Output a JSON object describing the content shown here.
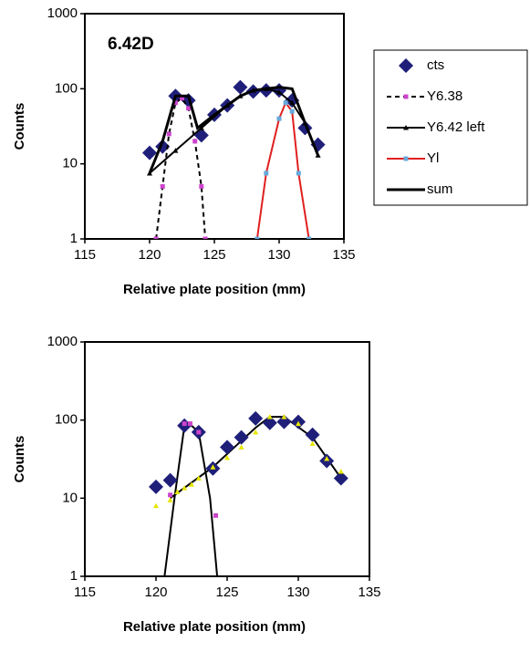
{
  "chart_data": [
    {
      "type": "line",
      "log_y": true,
      "annotation": "6.42D",
      "xlabel": "Relative plate position (mm)",
      "ylabel": "Counts",
      "xlim": [
        115,
        135
      ],
      "xticks": [
        115,
        120,
        125,
        130,
        135
      ],
      "ylim": [
        1,
        1000
      ],
      "yticks": [
        1,
        10,
        100,
        1000
      ],
      "legend": "right",
      "series": [
        {
          "name": "cts",
          "color": "#1f1f7a",
          "marker": "diamond",
          "line": "none",
          "x": [
            120,
            121,
            122,
            123,
            124,
            125,
            126,
            127,
            128,
            129,
            130,
            131,
            132,
            133
          ],
          "values": [
            14,
            17,
            80,
            70,
            24,
            45,
            60,
            105,
            92,
            95,
            95,
            70,
            30,
            18
          ]
        },
        {
          "name": "Y6.38",
          "color": "#000000",
          "marker_color": "#cc44cc",
          "marker": "square",
          "line": "dashed",
          "x": [
            120.5,
            121,
            121.5,
            122,
            122.5,
            123,
            123.5,
            124,
            124.3
          ],
          "values": [
            1,
            5,
            25,
            65,
            75,
            55,
            20,
            5,
            1
          ]
        },
        {
          "name": "Y6.42 left",
          "color": "#000000",
          "marker": "triangle",
          "line": "solid",
          "x": [
            120,
            122,
            124,
            126,
            127,
            128,
            129,
            130,
            131,
            132,
            133
          ],
          "values": [
            7.5,
            15,
            30,
            60,
            80,
            95,
            100,
            90,
            65,
            35,
            13
          ]
        },
        {
          "name": "Yl",
          "color": "#e02020",
          "marker_color": "#66aadd",
          "marker": "square",
          "line": "solid",
          "x": [
            128.3,
            129,
            130,
            130.5,
            131,
            131.5,
            132.3
          ],
          "values": [
            1,
            7.5,
            40,
            65,
            50,
            7.5,
            1
          ]
        },
        {
          "name": "sum",
          "color": "#000000",
          "marker": "none",
          "line": "thick",
          "x": [
            120,
            121,
            122,
            123,
            123.7,
            125,
            126,
            127,
            128,
            129,
            130,
            131,
            132,
            133
          ],
          "values": [
            7.5,
            20,
            80,
            80,
            30,
            45,
            60,
            80,
            95,
            100,
            105,
            100,
            35,
            13
          ]
        }
      ]
    },
    {
      "type": "line",
      "log_y": true,
      "xlabel": "Relative plate position (mm)",
      "ylabel": "Counts",
      "xlim": [
        115,
        135
      ],
      "xticks": [
        115,
        120,
        125,
        130,
        135
      ],
      "ylim": [
        1,
        1000
      ],
      "yticks": [
        1,
        10,
        100,
        1000
      ],
      "series": [
        {
          "color": "#000000",
          "marker": "none",
          "line": "solid",
          "x": [
            120.6,
            121.3,
            122,
            122.5,
            123,
            123.8,
            124.3
          ],
          "values": [
            1,
            10,
            85,
            85,
            70,
            10,
            1
          ]
        },
        {
          "color": "#000000",
          "marker": "none",
          "line": "solid",
          "x": [
            121,
            124,
            127,
            128,
            129,
            131,
            133
          ],
          "values": [
            10,
            25,
            80,
            110,
            110,
            60,
            18
          ]
        },
        {
          "color": "#1f1f7a",
          "marker": "diamond",
          "line": "none",
          "x": [
            120,
            121,
            122,
            123,
            124,
            125,
            126,
            127,
            128,
            129,
            130,
            131,
            132,
            133
          ],
          "values": [
            14,
            17,
            85,
            70,
            24,
            45,
            60,
            105,
            92,
            95,
            95,
            65,
            30,
            18
          ]
        },
        {
          "color": "#cc44cc",
          "marker": "square",
          "line": "none",
          "x": [
            121,
            122,
            122.4,
            123,
            124.2
          ],
          "values": [
            11,
            90,
            90,
            70,
            6
          ]
        },
        {
          "color": "#e6e600",
          "marker": "triangle",
          "line": "none",
          "x": [
            120,
            121,
            121.5,
            122,
            122.5,
            123,
            124,
            125,
            126,
            127,
            128,
            129,
            130,
            131,
            132,
            133
          ],
          "values": [
            8,
            9.5,
            12,
            13.5,
            15,
            18,
            25,
            33,
            45,
            70,
            110,
            110,
            90,
            50,
            32,
            22
          ]
        }
      ]
    }
  ]
}
